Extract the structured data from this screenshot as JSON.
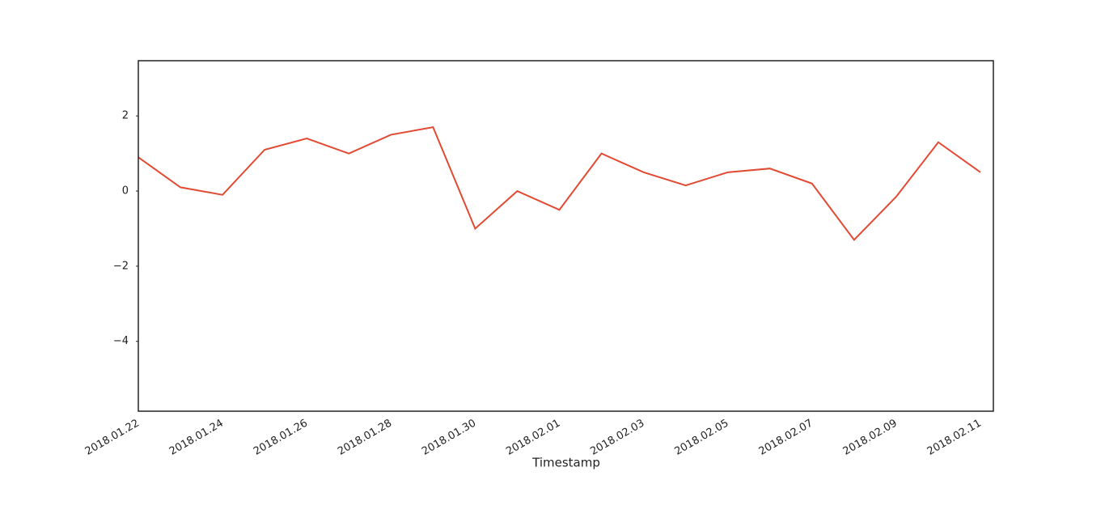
{
  "chart_data": {
    "type": "line",
    "x_label": "Timestamp",
    "x": [
      "2018.01.22",
      "2018.01.23",
      "2018.01.24",
      "2018.01.25",
      "2018.01.26",
      "2018.01.27",
      "2018.01.28",
      "2018.01.29",
      "2018.01.30",
      "2018.01.31",
      "2018.02.01",
      "2018.02.02",
      "2018.02.03",
      "2018.02.04",
      "2018.02.05",
      "2018.02.06",
      "2018.02.07",
      "2018.02.08",
      "2018.02.09",
      "2018.02.10",
      "2018.02.11"
    ],
    "series": [
      {
        "color": "#e24a33",
        "values": [
          0.9,
          0.1,
          -0.1,
          1.1,
          1.4,
          1.0,
          1.5,
          1.7,
          -1.0,
          0.0,
          -0.5,
          1.0,
          0.5,
          0.15,
          0.5,
          0.6,
          0.2,
          -1.3,
          -0.15,
          1.3,
          0.5
        ]
      }
    ],
    "xlim": [
      "2018.01.22",
      "2018.02.11"
    ],
    "xticks": [
      "2018.01.22",
      "2018.01.24",
      "2018.01.26",
      "2018.01.28",
      "2018.01.30",
      "2018.02.01",
      "2018.02.03",
      "2018.02.05",
      "2018.02.07",
      "2018.02.09",
      "2018.02.11"
    ],
    "ylim": [
      -5.86,
      3.47
    ],
    "yticks": [
      {
        "value": -4,
        "label": "−4"
      },
      {
        "value": -2,
        "label": "−2"
      },
      0,
      2
    ],
    "grid": false
  }
}
